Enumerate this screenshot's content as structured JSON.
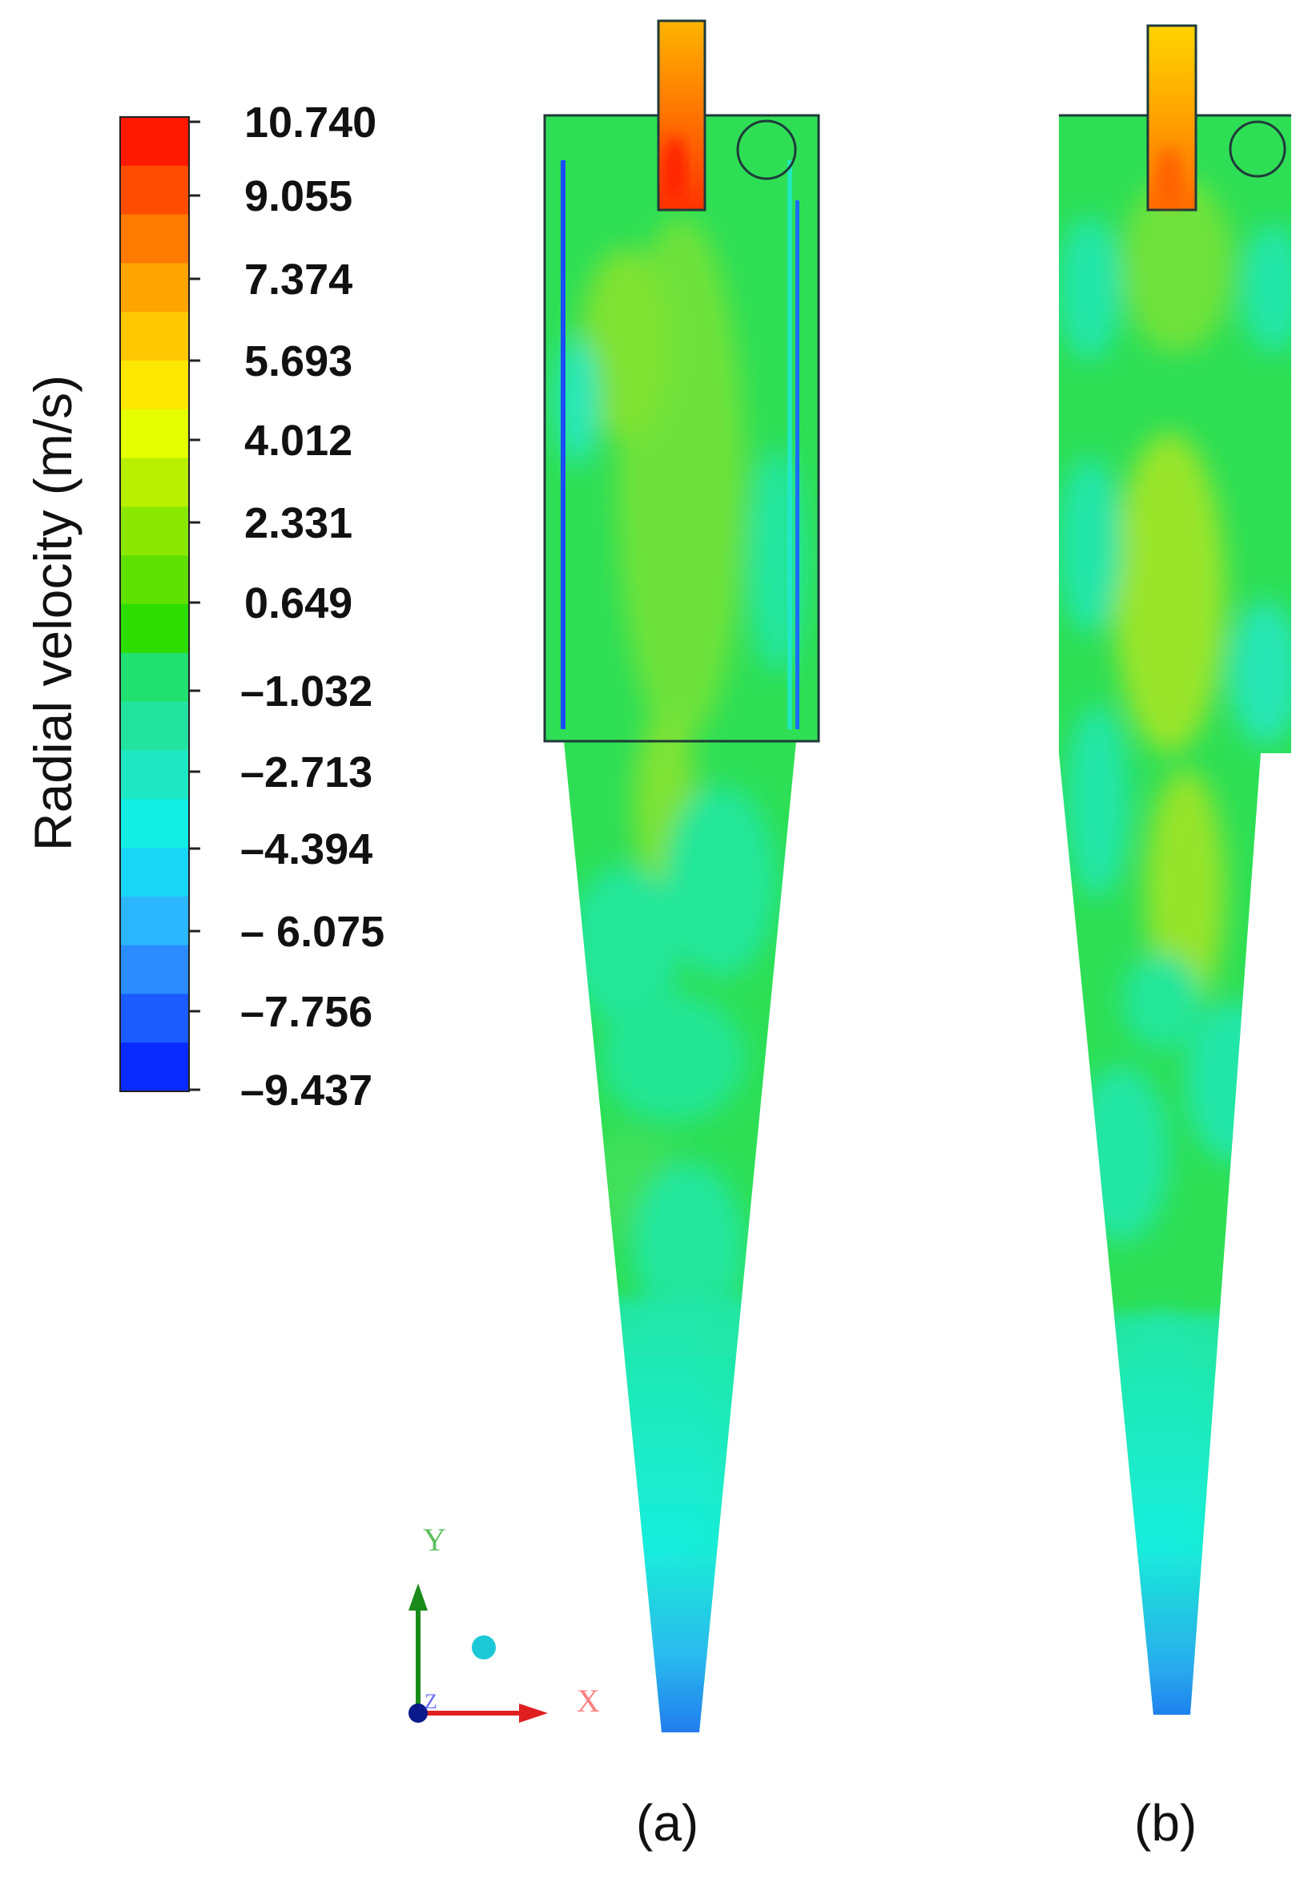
{
  "legend": {
    "title": "Radial velocity (m/s)",
    "ticks": [
      "10.740",
      "9.055",
      "7.374",
      "5.693",
      "4.012",
      "2.331",
      "0.649",
      "–1.032",
      "–2.713",
      "–4.394",
      "– 6.075",
      "–7.756",
      "–9.437"
    ],
    "band_colors": [
      "#ff1800",
      "#ff4d00",
      "#ff7a00",
      "#ffa400",
      "#ffc800",
      "#ffe800",
      "#e6ff00",
      "#b8f000",
      "#8ae800",
      "#5ee000",
      "#2edd00",
      "#20e070",
      "#22e4a0",
      "#1ee8c4",
      "#12eee4",
      "#18d6f6",
      "#2cb6ff",
      "#2a8cff",
      "#1a5cff",
      "#0a2bff"
    ]
  },
  "axes_triad": {
    "x_label": "X",
    "y_label": "Y",
    "z_label": "Z"
  },
  "panels": {
    "a_label": "(a)",
    "b_label": "(b)"
  },
  "colors": {
    "bg_green": "#2edf55",
    "light_green": "#66e33c",
    "cyan_green": "#22e69a",
    "cyan": "#1fead0",
    "outline": "#1f3a3a"
  }
}
